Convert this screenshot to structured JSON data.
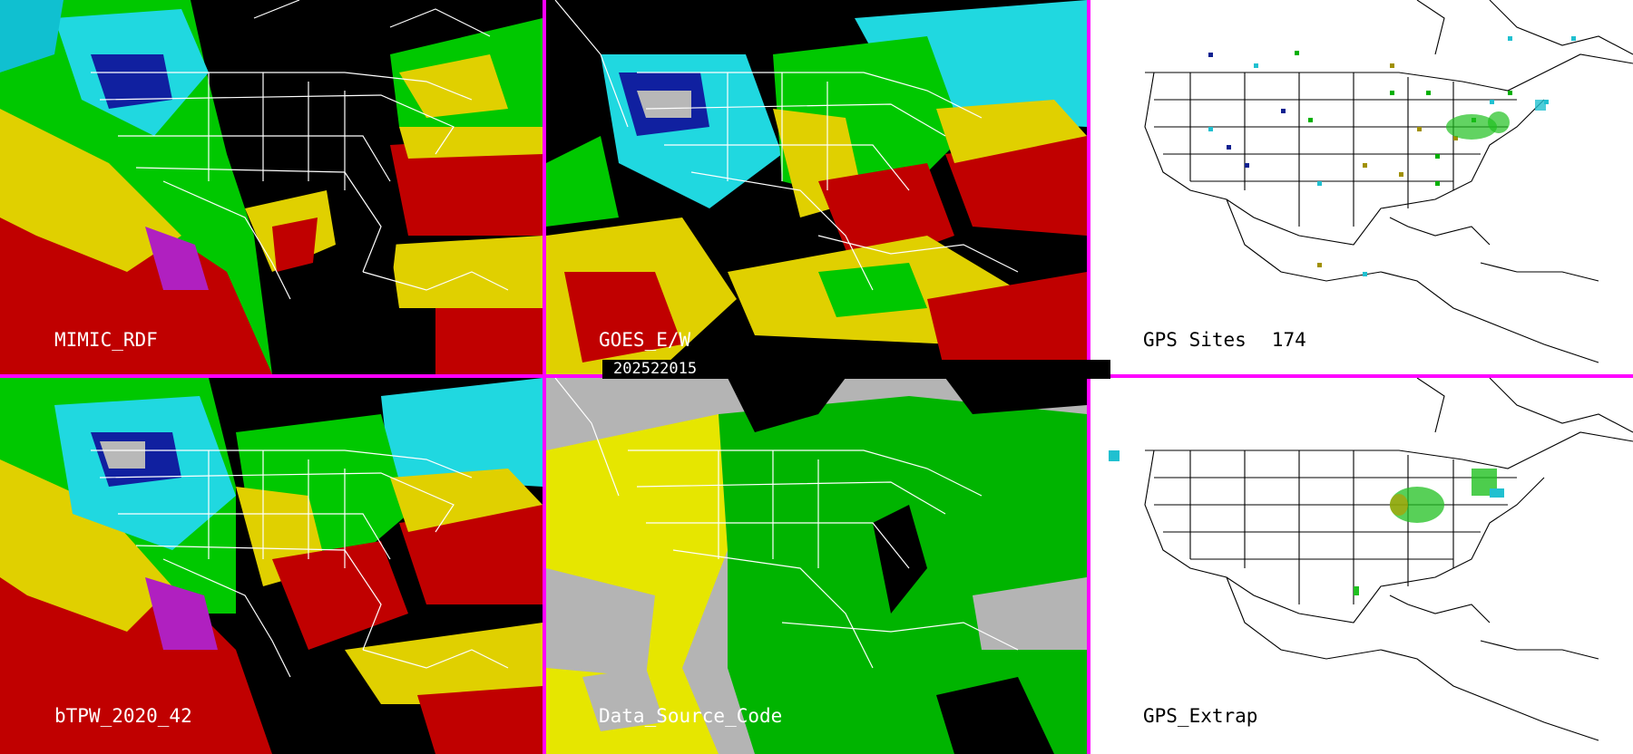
{
  "panels": {
    "mimic": {
      "label": "MIMIC_RDF"
    },
    "goes": {
      "label": "GOES_E/W"
    },
    "gps_sites": {
      "label": "GPS Sites",
      "count": "174"
    },
    "btpw": {
      "label": "bTPW_2020_42"
    },
    "data_source": {
      "label": "Data_Source_Code"
    },
    "gps_extrap": {
      "label": "GPS_Extrap"
    }
  },
  "timestamp": "202522015",
  "colors": {
    "divider": "#ff00ff",
    "white_map_bg": "#ffffff",
    "tpw_red": "#c00000",
    "tpw_yellow": "#e8e000",
    "tpw_green": "#00d000",
    "tpw_cyan": "#20e0e8",
    "tpw_blue": "#1030c0",
    "tpw_purple": "#b020c0",
    "source_gray": "#b4b4b4",
    "source_yellow": "#e6e600",
    "source_green": "#00b400"
  }
}
